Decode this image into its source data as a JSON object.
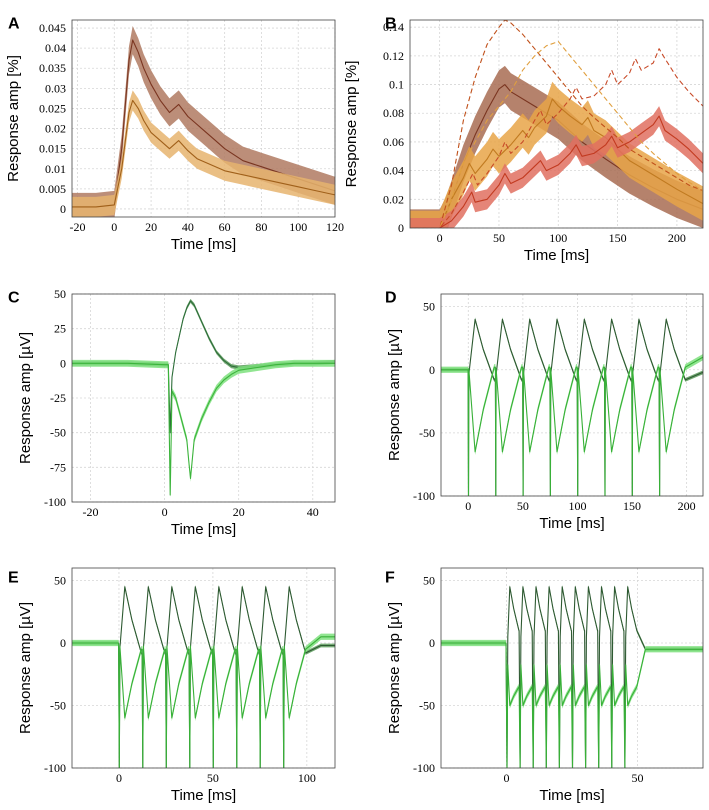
{
  "chart_data": [
    {
      "panel": "A",
      "type": "line",
      "xlabel": "Time [ms]",
      "ylabel": "Response amp [%]",
      "xlim": [
        -23,
        120
      ],
      "ylim": [
        -0.002,
        0.047
      ],
      "xticks": [
        -20,
        0,
        20,
        40,
        60,
        80,
        100,
        120
      ],
      "yticks": [
        0,
        0.005,
        0.01,
        0.015,
        0.02,
        0.025,
        0.03,
        0.035,
        0.04,
        0.045
      ],
      "series": [
        {
          "name": "dark",
          "color": "#7a3520",
          "fill": "#b07a62",
          "band": 0.0035,
          "x": [
            -23,
            -10,
            0,
            4,
            8,
            10,
            13,
            16,
            20,
            25,
            30,
            35,
            40,
            45,
            50,
            55,
            60,
            70,
            80,
            90,
            100,
            110,
            120
          ],
          "y": [
            0.0005,
            0.0005,
            0.001,
            0.015,
            0.037,
            0.042,
            0.039,
            0.035,
            0.031,
            0.027,
            0.024,
            0.026,
            0.023,
            0.021,
            0.019,
            0.017,
            0.015,
            0.012,
            0.0105,
            0.009,
            0.0075,
            0.006,
            0.0045
          ]
        },
        {
          "name": "light",
          "color": "#a0601a",
          "fill": "#e6b46e",
          "band": 0.0025,
          "x": [
            -23,
            -10,
            0,
            4,
            8,
            10,
            13,
            16,
            20,
            25,
            30,
            35,
            40,
            45,
            50,
            55,
            60,
            70,
            80,
            90,
            100,
            110,
            120
          ],
          "y": [
            0.0005,
            0.0005,
            0.001,
            0.01,
            0.024,
            0.027,
            0.025,
            0.022,
            0.019,
            0.017,
            0.015,
            0.017,
            0.0145,
            0.0125,
            0.0115,
            0.0105,
            0.0095,
            0.0085,
            0.0075,
            0.0065,
            0.0055,
            0.0045,
            0.0035
          ]
        }
      ]
    },
    {
      "panel": "B",
      "type": "line",
      "xlabel": "Time [ms]",
      "ylabel": "Response amp [%]",
      "xlim": [
        -25,
        222
      ],
      "ylim": [
        0,
        0.145
      ],
      "xticks": [
        0,
        50,
        100,
        150,
        200
      ],
      "yticks": [
        0,
        0.02,
        0.04,
        0.06,
        0.08,
        0.1,
        0.12,
        0.14
      ],
      "series": [
        {
          "name": "brown",
          "color": "#7a3520",
          "fill": "#a86c52",
          "band": 0.013,
          "x": [
            -25,
            0,
            5,
            10,
            20,
            30,
            40,
            50,
            55,
            60,
            80,
            100,
            120,
            140,
            160,
            180,
            200,
            222
          ],
          "y": [
            0,
            0,
            0.008,
            0.02,
            0.045,
            0.065,
            0.082,
            0.097,
            0.1,
            0.095,
            0.085,
            0.075,
            0.06,
            0.048,
            0.037,
            0.028,
            0.02,
            0.013
          ]
        },
        {
          "name": "orange",
          "color": "#c07a20",
          "fill": "#e8a448",
          "band": 0.012,
          "x": [
            -25,
            0,
            10,
            20,
            25,
            30,
            40,
            45,
            50,
            60,
            70,
            75,
            80,
            90,
            95,
            100,
            110,
            120,
            125,
            130,
            140,
            150,
            160,
            180,
            200,
            222
          ],
          "y": [
            0,
            0,
            0.02,
            0.035,
            0.045,
            0.038,
            0.048,
            0.055,
            0.05,
            0.058,
            0.068,
            0.063,
            0.07,
            0.078,
            0.09,
            0.085,
            0.078,
            0.072,
            0.077,
            0.068,
            0.063,
            0.055,
            0.047,
            0.037,
            0.027,
            0.017
          ]
        },
        {
          "name": "red",
          "color": "#c23a20",
          "fill": "#e07060",
          "band": 0.007,
          "x": [
            -25,
            0,
            10,
            20,
            27,
            30,
            40,
            50,
            55,
            60,
            70,
            80,
            85,
            90,
            100,
            110,
            115,
            120,
            130,
            140,
            145,
            150,
            160,
            170,
            180,
            185,
            190,
            200,
            210,
            222
          ],
          "y": [
            0,
            0,
            0.005,
            0.015,
            0.025,
            0.018,
            0.02,
            0.03,
            0.038,
            0.031,
            0.035,
            0.043,
            0.047,
            0.04,
            0.044,
            0.052,
            0.058,
            0.05,
            0.052,
            0.058,
            0.064,
            0.056,
            0.06,
            0.066,
            0.072,
            0.078,
            0.068,
            0.062,
            0.055,
            0.045
          ]
        },
        {
          "name": "brown-dashed",
          "color": "#c0501a",
          "fill": "none",
          "band": 0,
          "dashed": true,
          "x": [
            -25,
            0,
            10,
            20,
            30,
            40,
            50,
            55,
            60,
            70,
            80,
            90,
            100,
            110,
            120,
            130,
            140,
            150,
            160,
            170,
            180,
            190,
            200,
            210,
            222
          ],
          "y": [
            0,
            0,
            0.03,
            0.075,
            0.105,
            0.128,
            0.14,
            0.145,
            0.143,
            0.135,
            0.125,
            0.115,
            0.105,
            0.095,
            0.085,
            0.077,
            0.07,
            0.063,
            0.055,
            0.05,
            0.045,
            0.04,
            0.035,
            0.03,
            0.026
          ]
        },
        {
          "name": "orange-dashed",
          "color": "#e0a040",
          "fill": "none",
          "band": 0,
          "dashed": true,
          "x": [
            -25,
            0,
            10,
            20,
            30,
            40,
            50,
            60,
            70,
            80,
            90,
            100,
            110,
            120,
            130,
            140,
            150,
            160,
            170,
            180,
            190,
            200,
            210,
            222
          ],
          "y": [
            0,
            0,
            0.02,
            0.045,
            0.06,
            0.075,
            0.085,
            0.095,
            0.11,
            0.12,
            0.127,
            0.13,
            0.12,
            0.11,
            0.1,
            0.09,
            0.08,
            0.07,
            0.06,
            0.052,
            0.045,
            0.038,
            0.032,
            0.026
          ]
        },
        {
          "name": "red-dashed",
          "color": "#c84a28",
          "fill": "none",
          "band": 0,
          "dashed": true,
          "x": [
            -25,
            0,
            10,
            20,
            28,
            32,
            40,
            50,
            55,
            60,
            70,
            80,
            85,
            90,
            100,
            110,
            115,
            120,
            130,
            140,
            145,
            150,
            160,
            165,
            170,
            180,
            185,
            190,
            200,
            210,
            222
          ],
          "y": [
            0,
            0,
            0.01,
            0.025,
            0.038,
            0.03,
            0.038,
            0.05,
            0.06,
            0.052,
            0.06,
            0.075,
            0.082,
            0.072,
            0.08,
            0.09,
            0.098,
            0.09,
            0.092,
            0.1,
            0.11,
            0.1,
            0.108,
            0.118,
            0.11,
            0.115,
            0.125,
            0.118,
            0.105,
            0.095,
            0.085
          ]
        }
      ]
    },
    {
      "panel": "C",
      "type": "line",
      "xlabel": "Time [ms]",
      "ylabel": "Response amp [µV]",
      "xlim": [
        -25,
        46
      ],
      "ylim": [
        -100,
        50
      ],
      "xticks": [
        -20,
        0,
        20,
        40
      ],
      "yticks": [
        -100,
        -75,
        -50,
        -25,
        0,
        25,
        50
      ],
      "series": [
        {
          "name": "dark-green",
          "color": "#2e6e3a",
          "fill": "#5a9a5a",
          "band": 1.5,
          "x": [
            -25,
            -10,
            0,
            1,
            1.5,
            2,
            3,
            4,
            5,
            6,
            7,
            8,
            10,
            12,
            14,
            16,
            18,
            20,
            25,
            30,
            35,
            40,
            46
          ],
          "y": [
            0,
            0,
            -1,
            -1,
            -50,
            -10,
            8,
            20,
            32,
            40,
            45,
            42,
            30,
            18,
            8,
            2,
            -2,
            -3,
            -2,
            -1,
            0,
            0,
            1
          ]
        },
        {
          "name": "light-green",
          "color": "#3cb43c",
          "fill": "#7ee07e",
          "band": 2.5,
          "x": [
            -25,
            -10,
            0,
            1,
            1.5,
            2,
            3,
            4,
            5,
            6,
            6.5,
            7,
            8,
            10,
            12,
            14,
            16,
            18,
            20,
            25,
            30,
            35,
            40,
            46
          ],
          "y": [
            0,
            0,
            -1,
            -1,
            -95,
            -20,
            -25,
            -35,
            -45,
            -55,
            -70,
            -83,
            -55,
            -40,
            -28,
            -18,
            -12,
            -8,
            -5,
            -3,
            -1,
            0,
            0,
            0
          ]
        }
      ]
    },
    {
      "panel": "D",
      "type": "line",
      "xlabel": "Time [ms]",
      "ylabel": "Response amp [µV]",
      "xlim": [
        -25,
        215
      ],
      "ylim": [
        -100,
        60
      ],
      "xticks": [
        0,
        50,
        100,
        150,
        200
      ],
      "yticks": [
        -100,
        -50,
        0,
        50
      ],
      "pulse_ms": [
        0,
        25,
        50,
        75,
        100,
        125,
        150,
        175
      ],
      "series": [
        {
          "name": "dark-green",
          "color": "#2e5a32",
          "fill": "#5a9a5a",
          "band": 1.5,
          "peak": 40,
          "trough": -8,
          "tail": -2
        },
        {
          "name": "light-green",
          "color": "#38b038",
          "fill": "#7ee07e",
          "band": 2.5,
          "peak": -65,
          "trough": 2,
          "tail": 10
        }
      ]
    },
    {
      "panel": "E",
      "type": "line",
      "xlabel": "Time [ms]",
      "ylabel": "Response amp [µV]",
      "xlim": [
        -25,
        115
      ],
      "ylim": [
        -100,
        60
      ],
      "xticks": [
        0,
        50,
        100
      ],
      "yticks": [
        -100,
        -50,
        0,
        50
      ],
      "pulse_ms": [
        0,
        12.5,
        25,
        37.5,
        50,
        62.5,
        75,
        87.5
      ],
      "series": [
        {
          "name": "dark-green",
          "color": "#2e5a32",
          "fill": "#5a9a5a",
          "band": 1.5,
          "peak": 45,
          "trough": -8,
          "tail": -2
        },
        {
          "name": "light-green",
          "color": "#38b038",
          "fill": "#7ee07e",
          "band": 2.5,
          "peak": -60,
          "trough": -5,
          "tail": 5
        }
      ]
    },
    {
      "panel": "F",
      "type": "line",
      "xlabel": "Time [ms]",
      "ylabel": "Response amp [µV]",
      "xlim": [
        -25,
        75
      ],
      "ylim": [
        -100,
        60
      ],
      "xticks": [
        0,
        50
      ],
      "yticks": [
        -100,
        -50,
        0,
        50
      ],
      "pulse_ms": [
        0,
        5,
        10,
        15,
        20,
        25,
        30,
        35,
        40,
        45
      ],
      "series": [
        {
          "name": "dark-green",
          "color": "#2e5a32",
          "fill": "#5a9a5a",
          "band": 1.5,
          "peak": 45,
          "trough": 10,
          "tail": -5
        },
        {
          "name": "light-green",
          "color": "#38b038",
          "fill": "#7ee07e",
          "band": 2.5,
          "peak": -50,
          "trough": -35,
          "tail": -5
        }
      ]
    }
  ]
}
